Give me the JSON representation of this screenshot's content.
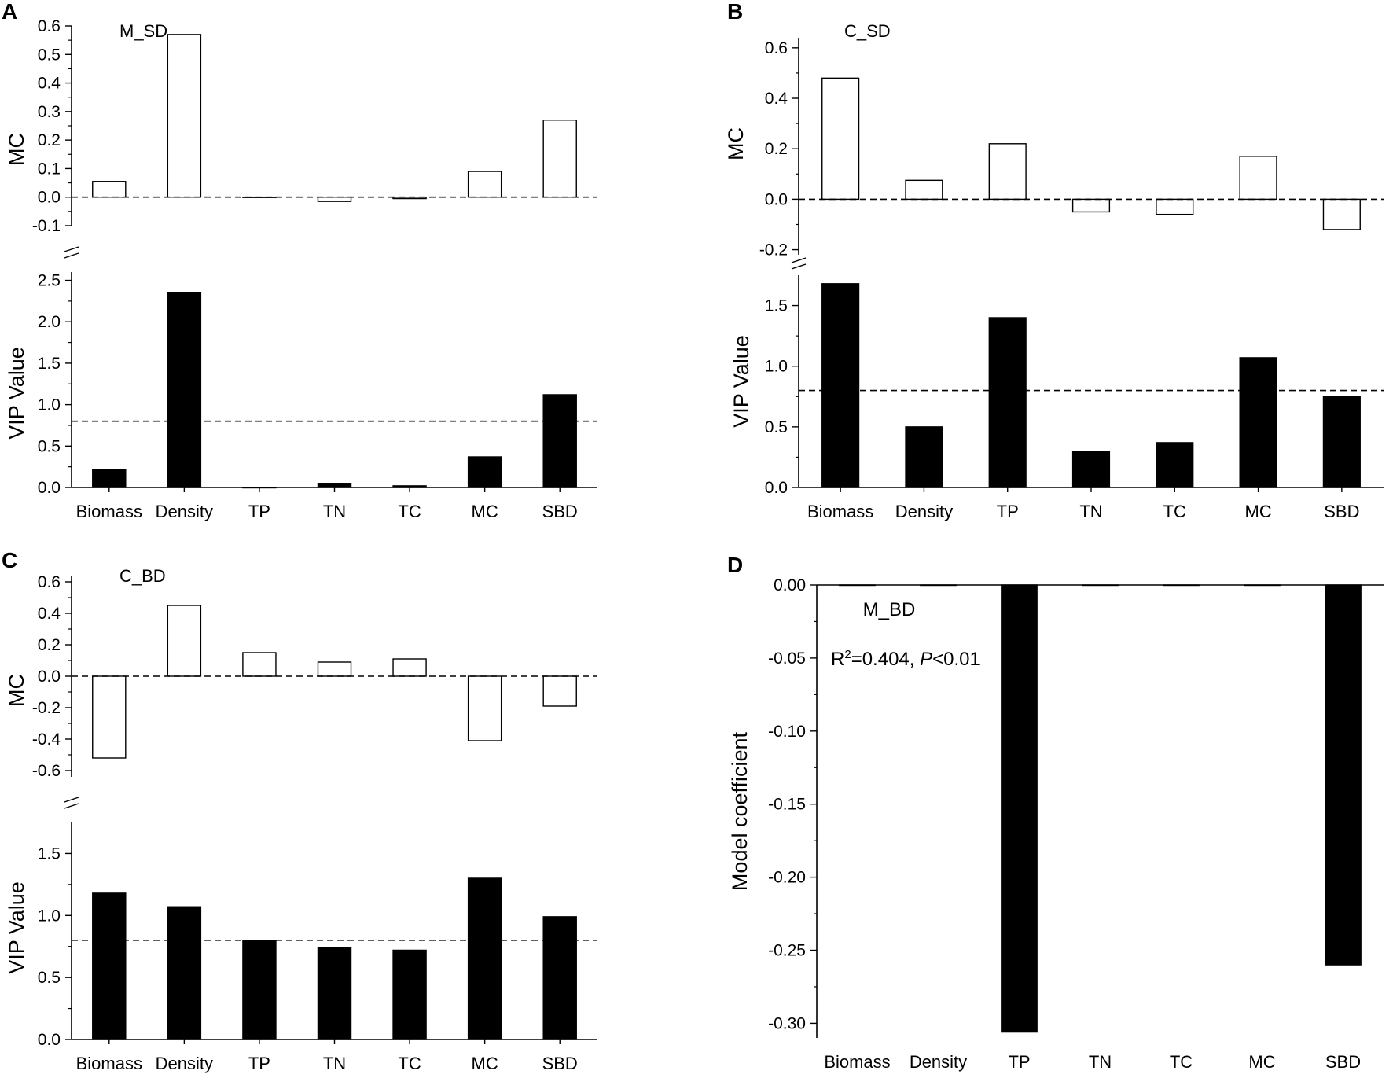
{
  "chart_data": [
    {
      "panel": "A",
      "type": "bar",
      "title": "M_SD",
      "categories": [
        "Biomass",
        "Density",
        "TP",
        "TN",
        "TC",
        "MC",
        "SBD"
      ],
      "top": {
        "ylabel": "MC",
        "ylim": [
          -0.1,
          0.6
        ],
        "ticks": [
          "0.6",
          "0.5",
          "0.4",
          "0.3",
          "0.2",
          "0.1",
          "0.0",
          "-0.1"
        ],
        "tick_values": [
          0.6,
          0.5,
          0.4,
          0.3,
          0.2,
          0.1,
          0.0,
          -0.1
        ],
        "values": [
          0.055,
          0.57,
          0.0,
          -0.015,
          -0.005,
          0.09,
          0.27
        ],
        "reference": 0.0,
        "fill": "#ffffff"
      },
      "bottom": {
        "ylabel": "VIP Value",
        "ylim": [
          0,
          2.6
        ],
        "ticks": [
          "2.5",
          "2.0",
          "1.5",
          "1.0",
          "0.5",
          "0.0"
        ],
        "tick_values": [
          2.5,
          2.0,
          1.5,
          1.0,
          0.5,
          0.0
        ],
        "values": [
          0.22,
          2.35,
          0.0,
          0.05,
          0.02,
          0.37,
          1.12
        ],
        "reference": 0.8,
        "fill": "#000000"
      }
    },
    {
      "panel": "B",
      "type": "bar",
      "title": "C_SD",
      "categories": [
        "Biomass",
        "Density",
        "TP",
        "TN",
        "TC",
        "MC",
        "SBD"
      ],
      "top": {
        "ylabel": "MC",
        "ylim": [
          -0.22,
          0.64
        ],
        "ticks": [
          "0.6",
          "0.4",
          "0.2",
          "0.0",
          "-0.2"
        ],
        "tick_values": [
          0.6,
          0.4,
          0.2,
          0.0,
          -0.2
        ],
        "values": [
          0.48,
          0.075,
          0.22,
          -0.05,
          -0.06,
          0.17,
          -0.12
        ],
        "reference": 0.0,
        "fill": "#ffffff"
      },
      "bottom": {
        "ylabel": "VIP Value",
        "ylim": [
          0,
          1.75
        ],
        "ticks": [
          "1.5",
          "1.0",
          "0.5",
          "0.0"
        ],
        "tick_values": [
          1.5,
          1.0,
          0.5,
          0.0
        ],
        "values": [
          1.68,
          0.5,
          1.4,
          0.3,
          0.37,
          1.07,
          0.75
        ],
        "reference": 0.8,
        "fill": "#000000"
      }
    },
    {
      "panel": "C",
      "type": "bar",
      "title": "C_BD",
      "categories": [
        "Biomass",
        "Density",
        "TP",
        "TN",
        "TC",
        "MC",
        "SBD"
      ],
      "top": {
        "ylabel": "MC",
        "ylim": [
          -0.64,
          0.64
        ],
        "ticks": [
          "0.6",
          "0.4",
          "0.2",
          "0.0",
          "-0.2",
          "-0.4",
          "-0.6"
        ],
        "tick_values": [
          0.6,
          0.4,
          0.2,
          0.0,
          -0.2,
          -0.4,
          -0.6
        ],
        "values": [
          -0.52,
          0.45,
          0.15,
          0.09,
          0.11,
          -0.41,
          -0.19
        ],
        "reference": 0.0,
        "fill": "#ffffff"
      },
      "bottom": {
        "ylabel": "VIP Value",
        "ylim": [
          0,
          1.75
        ],
        "ticks": [
          "1.5",
          "1.0",
          "0.5",
          "0.0"
        ],
        "tick_values": [
          1.5,
          1.0,
          0.5,
          0.0
        ],
        "values": [
          1.18,
          1.07,
          0.8,
          0.74,
          0.72,
          1.3,
          0.99
        ],
        "reference": 0.8,
        "fill": "#000000"
      }
    },
    {
      "panel": "D",
      "type": "bar",
      "title": "M_BD",
      "annotation_prefix": "R",
      "annotation_sup": "2",
      "annotation_mid": "=0.404, ",
      "annotation_italic": "P",
      "annotation_suffix": "<0.01",
      "categories": [
        "Biomass",
        "Density",
        "TP",
        "TN",
        "TC",
        "MC",
        "SBD"
      ],
      "ylabel": "Model coefficient",
      "ylim": [
        -0.31,
        0.0
      ],
      "ticks": [
        "0.00",
        "-0.05",
        "-0.10",
        "-0.15",
        "-0.20",
        "-0.25",
        "-0.30"
      ],
      "tick_values": [
        0.0,
        -0.05,
        -0.1,
        -0.15,
        -0.2,
        -0.25,
        -0.3
      ],
      "values": [
        0.0,
        0.0,
        -0.306,
        0.0,
        0.0,
        0.0,
        -0.26
      ],
      "fill": "#000000"
    }
  ]
}
